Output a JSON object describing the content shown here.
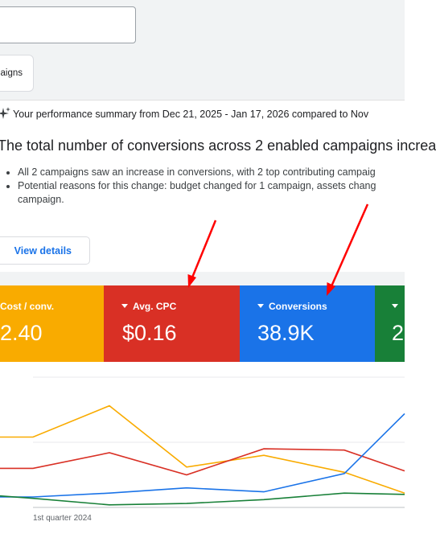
{
  "toolbar": {
    "search_value": "",
    "campaigns_tab_label": "aigns"
  },
  "summary": {
    "performance_line": "Your performance summary from Dec 21, 2025 - Jan 17, 2026 compared to Nov",
    "headline": "The total number of conversions across 2 enabled campaigns increa",
    "bullets": [
      "All 2 campaigns saw an increase in conversions, with 2 top contributing campaig",
      "Potential reasons for this change: budget changed for 1 campaign, assets chang",
      "campaign."
    ],
    "view_details_label": "View details"
  },
  "metrics": [
    {
      "label": "Cost / conv.",
      "value": "2.40",
      "color": "#f9ab00",
      "has_caret": false
    },
    {
      "label": "Avg. CPC",
      "value": "$0.16",
      "color": "#d93025",
      "has_caret": true
    },
    {
      "label": "Conversions",
      "value": "38.9K",
      "color": "#1a73e8",
      "has_caret": true
    },
    {
      "label": "",
      "value": "2",
      "color": "#188038",
      "has_caret": true
    }
  ],
  "chart_data": {
    "type": "line",
    "x_start_label": "1st quarter 2024",
    "grid": true,
    "series": [
      {
        "color": "#f9ab00",
        "values": [
          0.54,
          0.78,
          0.31,
          0.4,
          0.27,
          0.11
        ]
      },
      {
        "color": "#d93025",
        "values": [
          0.3,
          0.42,
          0.25,
          0.45,
          0.44,
          0.28
        ]
      },
      {
        "color": "#1a73e8",
        "values": [
          0.08,
          0.11,
          0.15,
          0.12,
          0.26,
          0.72
        ]
      },
      {
        "color": "#188038",
        "values": [
          0.07,
          0.02,
          0.03,
          0.06,
          0.11,
          0.1
        ]
      }
    ]
  }
}
